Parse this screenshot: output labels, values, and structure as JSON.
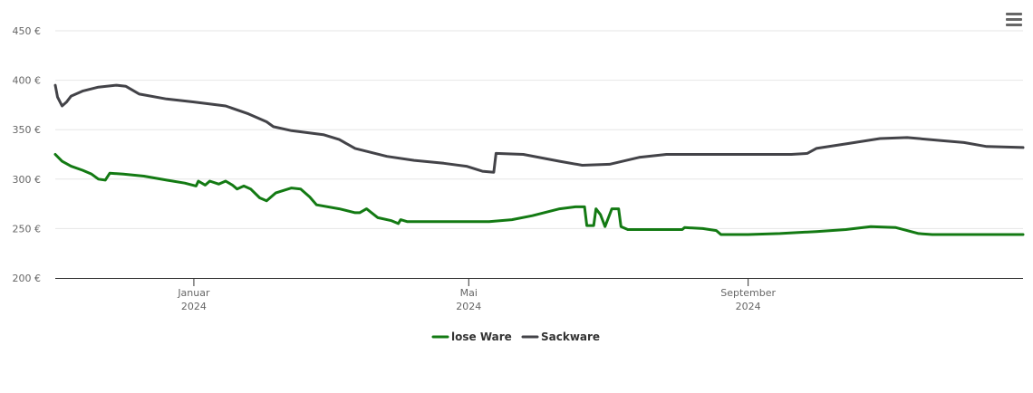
{
  "menu": {
    "icon": "hamburger-menu-icon"
  },
  "chart_data": {
    "type": "line",
    "title": "",
    "xlabel": "",
    "ylabel": "",
    "x_range": [
      "2023-11-01",
      "2024-12-31"
    ],
    "ylim": [
      200,
      450
    ],
    "y_ticks": [
      {
        "value": 200,
        "label": "200 €"
      },
      {
        "value": 250,
        "label": "250 €"
      },
      {
        "value": 300,
        "label": "300 €"
      },
      {
        "value": 350,
        "label": "350 €"
      },
      {
        "value": 400,
        "label": "400 €"
      },
      {
        "value": 450,
        "label": "450 €"
      }
    ],
    "x_ticks": [
      {
        "date": "2024-01-01",
        "month": "Januar",
        "year": "2024"
      },
      {
        "date": "2024-05-01",
        "month": "Mai",
        "year": "2024"
      },
      {
        "date": "2024-09-01",
        "month": "September",
        "year": "2024"
      }
    ],
    "grid": true,
    "legend_position": "bottom-center",
    "series": [
      {
        "name": "lose Ware",
        "color": "#137a13",
        "points": [
          [
            "2023-11-01",
            325
          ],
          [
            "2023-11-04",
            318
          ],
          [
            "2023-11-08",
            313
          ],
          [
            "2023-11-13",
            309
          ],
          [
            "2023-11-17",
            305
          ],
          [
            "2023-11-20",
            300
          ],
          [
            "2023-11-23",
            299
          ],
          [
            "2023-11-25",
            306
          ],
          [
            "2023-12-01",
            305
          ],
          [
            "2023-12-10",
            303
          ],
          [
            "2023-12-20",
            299
          ],
          [
            "2023-12-28",
            296
          ],
          [
            "2024-01-02",
            293
          ],
          [
            "2024-01-03",
            298
          ],
          [
            "2024-01-06",
            294
          ],
          [
            "2024-01-08",
            298
          ],
          [
            "2024-01-12",
            295
          ],
          [
            "2024-01-15",
            298
          ],
          [
            "2024-01-18",
            294
          ],
          [
            "2024-01-20",
            290
          ],
          [
            "2024-01-23",
            293
          ],
          [
            "2024-01-26",
            290
          ],
          [
            "2024-01-30",
            281
          ],
          [
            "2024-02-02",
            278
          ],
          [
            "2024-02-06",
            286
          ],
          [
            "2024-02-13",
            291
          ],
          [
            "2024-02-17",
            290
          ],
          [
            "2024-02-21",
            282
          ],
          [
            "2024-02-24",
            274
          ],
          [
            "2024-03-05",
            270
          ],
          [
            "2024-03-12",
            266
          ],
          [
            "2024-03-14",
            266
          ],
          [
            "2024-03-17",
            270
          ],
          [
            "2024-03-22",
            261
          ],
          [
            "2024-03-28",
            258
          ],
          [
            "2024-03-31",
            255
          ],
          [
            "2024-04-01",
            259
          ],
          [
            "2024-04-04",
            257
          ],
          [
            "2024-04-15",
            257
          ],
          [
            "2024-04-25",
            257
          ],
          [
            "2024-05-10",
            257
          ],
          [
            "2024-05-20",
            259
          ],
          [
            "2024-05-29",
            263
          ],
          [
            "2024-06-10",
            270
          ],
          [
            "2024-06-17",
            272
          ],
          [
            "2024-06-21",
            272
          ],
          [
            "2024-06-22",
            253
          ],
          [
            "2024-06-25",
            253
          ],
          [
            "2024-06-26",
            270
          ],
          [
            "2024-06-28",
            264
          ],
          [
            "2024-06-30",
            252
          ],
          [
            "2024-07-03",
            270
          ],
          [
            "2024-07-06",
            270
          ],
          [
            "2024-07-07",
            252
          ],
          [
            "2024-07-10",
            249
          ],
          [
            "2024-07-20",
            249
          ],
          [
            "2024-08-01",
            249
          ],
          [
            "2024-08-03",
            249
          ],
          [
            "2024-08-04",
            251
          ],
          [
            "2024-08-12",
            250
          ],
          [
            "2024-08-18",
            248
          ],
          [
            "2024-08-20",
            244
          ],
          [
            "2024-09-01",
            244
          ],
          [
            "2024-09-15",
            245
          ],
          [
            "2024-10-01",
            247
          ],
          [
            "2024-10-14",
            249
          ],
          [
            "2024-10-25",
            252
          ],
          [
            "2024-11-05",
            251
          ],
          [
            "2024-11-15",
            245
          ],
          [
            "2024-11-21",
            244
          ],
          [
            "2024-12-31",
            244
          ]
        ]
      },
      {
        "name": "Sackware",
        "color": "#434348",
        "points": [
          [
            "2023-11-01",
            395
          ],
          [
            "2023-11-02",
            383
          ],
          [
            "2023-11-04",
            374
          ],
          [
            "2023-11-06",
            378
          ],
          [
            "2023-11-08",
            384
          ],
          [
            "2023-11-13",
            389
          ],
          [
            "2023-11-20",
            393
          ],
          [
            "2023-11-28",
            395
          ],
          [
            "2023-12-02",
            394
          ],
          [
            "2023-12-08",
            386
          ],
          [
            "2023-12-20",
            381
          ],
          [
            "2024-01-01",
            378
          ],
          [
            "2024-01-15",
            374
          ],
          [
            "2024-01-25",
            366
          ],
          [
            "2024-02-02",
            358
          ],
          [
            "2024-02-05",
            353
          ],
          [
            "2024-02-13",
            349
          ],
          [
            "2024-02-27",
            345
          ],
          [
            "2024-03-05",
            340
          ],
          [
            "2024-03-12",
            331
          ],
          [
            "2024-03-26",
            323
          ],
          [
            "2024-04-07",
            319
          ],
          [
            "2024-04-20",
            316
          ],
          [
            "2024-04-30",
            313
          ],
          [
            "2024-05-07",
            308
          ],
          [
            "2024-05-12",
            307
          ],
          [
            "2024-05-13",
            326
          ],
          [
            "2024-05-25",
            325
          ],
          [
            "2024-06-10",
            318
          ],
          [
            "2024-06-20",
            314
          ],
          [
            "2024-07-02",
            315
          ],
          [
            "2024-07-15",
            322
          ],
          [
            "2024-07-27",
            325
          ],
          [
            "2024-08-15",
            325
          ],
          [
            "2024-09-05",
            325
          ],
          [
            "2024-09-20",
            325
          ],
          [
            "2024-09-27",
            326
          ],
          [
            "2024-10-01",
            331
          ],
          [
            "2024-10-15",
            336
          ],
          [
            "2024-10-29",
            341
          ],
          [
            "2024-11-10",
            342
          ],
          [
            "2024-11-25",
            339
          ],
          [
            "2024-12-05",
            337
          ],
          [
            "2024-12-15",
            333
          ],
          [
            "2024-12-31",
            332
          ]
        ]
      }
    ]
  }
}
